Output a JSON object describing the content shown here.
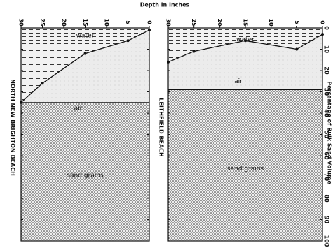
{
  "chart_data": {
    "type": "area",
    "xlabel": "Depth in Inches",
    "ylabel": "Percentage of Bulk Sand Volume",
    "xlim": [
      30,
      0
    ],
    "xticks": [
      30,
      25,
      20,
      15,
      10,
      5,
      0
    ],
    "ylim": [
      0,
      100
    ],
    "yticks": [
      0,
      10,
      20,
      30,
      40,
      50,
      60,
      70,
      80,
      90,
      100
    ],
    "panels": [
      {
        "name": "NORTH NEW BRIGHTON BEACH",
        "x": [
          30,
          25,
          15,
          5,
          0
        ],
        "values": [
          35,
          26,
          12,
          6,
          1
        ],
        "sand_level": 35,
        "water_label": "water",
        "air_label": "air",
        "sand_label": "sand grains"
      },
      {
        "name": "LEITHFIELD BEACH",
        "x": [
          30,
          25,
          15,
          5,
          0
        ],
        "values": [
          16,
          11,
          6,
          10,
          3
        ],
        "sand_level": 29,
        "water_label": "water",
        "air_label": "air",
        "sand_label": "sand grains"
      }
    ]
  }
}
